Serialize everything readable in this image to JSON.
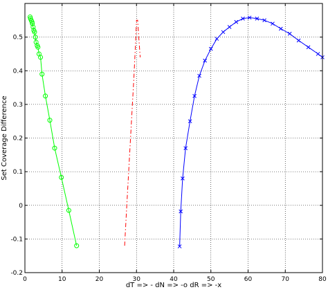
{
  "chart_data": {
    "type": "line",
    "title": "",
    "xlabel": "dT => -  dN => -o  dR => -x",
    "ylabel": "Set Coverage Difference",
    "xlim": [
      0,
      80
    ],
    "ylim": [
      -0.2,
      0.6
    ],
    "xticks": [
      0,
      10,
      20,
      30,
      40,
      50,
      60,
      70,
      80
    ],
    "yticks": [
      -0.2,
      -0.1,
      0,
      0.1,
      0.2,
      0.3,
      0.4,
      0.5
    ],
    "grid": true,
    "series": [
      {
        "color": "#ff0000",
        "line_style": "dash-dot",
        "marker": "none",
        "x": [
          26.8,
          27.3,
          27.8,
          28.3,
          28.8,
          29.3,
          29.7,
          30.0,
          30.3,
          30.6,
          31.0
        ],
        "y": [
          -0.12,
          -0.02,
          0.08,
          0.18,
          0.28,
          0.38,
          0.47,
          0.55,
          0.55,
          0.5,
          0.44
        ]
      },
      {
        "color": "#00ff00",
        "line_style": "solid",
        "marker": "circle",
        "x": [
          1.4,
          1.5,
          1.7,
          1.9,
          2.0,
          2.2,
          2.4,
          2.6,
          2.8,
          3.0,
          3.3,
          3.5,
          3.8,
          4.2,
          4.6,
          5.5,
          6.7,
          8.0,
          9.8,
          11.8,
          13.9
        ],
        "y": [
          0.56,
          0.555,
          0.55,
          0.545,
          0.54,
          0.53,
          0.52,
          0.515,
          0.5,
          0.485,
          0.475,
          0.47,
          0.45,
          0.44,
          0.39,
          0.325,
          0.253,
          0.17,
          0.083,
          -0.015,
          -0.12
        ]
      },
      {
        "color": "#0000ff",
        "line_style": "solid",
        "marker": "x",
        "x": [
          41.6,
          41.9,
          42.4,
          43.2,
          44.4,
          45.6,
          46.9,
          48.4,
          50.0,
          51.6,
          53.3,
          55.0,
          56.8,
          58.6,
          60.4,
          62.4,
          64.4,
          66.6,
          68.8,
          71.2,
          73.6,
          76.2,
          78.8,
          80.0
        ],
        "y": [
          -0.122,
          -0.018,
          0.08,
          0.17,
          0.25,
          0.325,
          0.385,
          0.43,
          0.465,
          0.495,
          0.515,
          0.53,
          0.545,
          0.555,
          0.558,
          0.555,
          0.55,
          0.54,
          0.525,
          0.51,
          0.49,
          0.47,
          0.45,
          0.44
        ]
      }
    ]
  }
}
